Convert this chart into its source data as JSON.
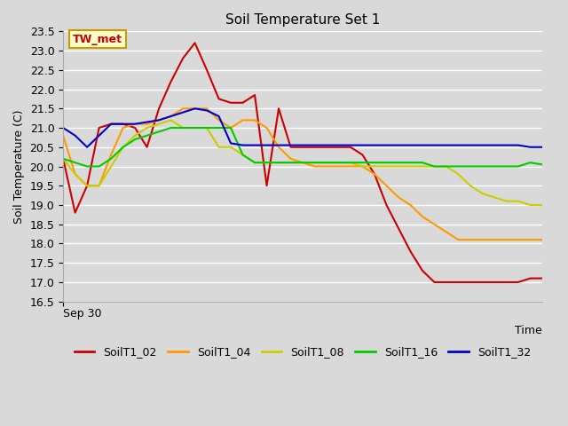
{
  "title": "Soil Temperature Set 1",
  "xlabel": "Time",
  "ylabel": "Soil Temperature (C)",
  "ylim": [
    16.5,
    23.5
  ],
  "background_color": "#d9d9d9",
  "plot_bg_color": "#d9d9d9",
  "annotation_label": "TW_met",
  "annotation_bg": "#ffffcc",
  "annotation_border": "#cc9900",
  "annotation_text_color": "#cc0000",
  "series": {
    "SoilT1_02": {
      "color": "#cc0000",
      "x": [
        0,
        1,
        2,
        3,
        4,
        5,
        6,
        7,
        8,
        9,
        10,
        11,
        12,
        13,
        14,
        15,
        16,
        17,
        18,
        19,
        20,
        21,
        22,
        23,
        24,
        25,
        26,
        27,
        28,
        29,
        30,
        31,
        32,
        33,
        34,
        35,
        36,
        37,
        38,
        39,
        40
      ],
      "y": [
        20.2,
        18.8,
        19.5,
        21.0,
        21.1,
        21.1,
        21.0,
        20.5,
        21.5,
        22.2,
        22.8,
        23.2,
        22.5,
        21.75,
        21.65,
        21.65,
        21.85,
        19.5,
        21.5,
        20.5,
        20.5,
        20.5,
        20.5,
        20.5,
        20.5,
        20.3,
        19.8,
        19.0,
        18.4,
        17.8,
        17.3,
        17.0,
        17.0,
        17.0,
        17.0,
        17.0,
        17.0,
        17.0,
        17.0,
        17.1,
        17.1
      ]
    },
    "SoilT1_04": {
      "color": "#ff9900",
      "x": [
        0,
        1,
        2,
        3,
        4,
        5,
        6,
        7,
        8,
        9,
        10,
        11,
        12,
        13,
        14,
        15,
        16,
        17,
        18,
        19,
        20,
        21,
        22,
        23,
        24,
        25,
        26,
        27,
        28,
        29,
        30,
        31,
        32,
        33,
        34,
        35,
        36,
        37,
        38,
        39,
        40
      ],
      "y": [
        20.8,
        19.8,
        19.5,
        19.5,
        20.3,
        21.0,
        21.1,
        21.1,
        21.2,
        21.3,
        21.5,
        21.5,
        21.5,
        21.2,
        21.0,
        21.2,
        21.2,
        21.0,
        20.5,
        20.2,
        20.1,
        20.0,
        20.0,
        20.0,
        20.0,
        20.0,
        19.8,
        19.5,
        19.2,
        19.0,
        18.7,
        18.5,
        18.3,
        18.1,
        18.1,
        18.1,
        18.1,
        18.1,
        18.1,
        18.1,
        18.1
      ]
    },
    "SoilT1_08": {
      "color": "#cccc00",
      "x": [
        0,
        1,
        2,
        3,
        4,
        5,
        6,
        7,
        8,
        9,
        10,
        11,
        12,
        13,
        14,
        15,
        16,
        17,
        18,
        19,
        20,
        21,
        22,
        23,
        24,
        25,
        26,
        27,
        28,
        29,
        30,
        31,
        32,
        33,
        34,
        35,
        36,
        37,
        38,
        39,
        40
      ],
      "y": [
        20.2,
        19.8,
        19.5,
        19.5,
        20.0,
        20.5,
        20.8,
        21.0,
        21.1,
        21.2,
        21.0,
        21.0,
        21.0,
        20.5,
        20.5,
        20.3,
        20.1,
        20.1,
        20.1,
        20.1,
        20.1,
        20.1,
        20.1,
        20.1,
        20.1,
        20.0,
        20.0,
        20.0,
        20.0,
        20.0,
        20.0,
        20.0,
        20.0,
        19.8,
        19.5,
        19.3,
        19.2,
        19.1,
        19.1,
        19.0,
        19.0
      ]
    },
    "SoilT1_16": {
      "color": "#00cc00",
      "x": [
        0,
        1,
        2,
        3,
        4,
        5,
        6,
        7,
        8,
        9,
        10,
        11,
        12,
        13,
        14,
        15,
        16,
        17,
        18,
        19,
        20,
        21,
        22,
        23,
        24,
        25,
        26,
        27,
        28,
        29,
        30,
        31,
        32,
        33,
        34,
        35,
        36,
        37,
        38,
        39,
        40
      ],
      "y": [
        20.2,
        20.1,
        20.0,
        20.0,
        20.2,
        20.5,
        20.7,
        20.8,
        20.9,
        21.0,
        21.0,
        21.0,
        21.0,
        21.0,
        21.0,
        20.3,
        20.1,
        20.1,
        20.1,
        20.1,
        20.1,
        20.1,
        20.1,
        20.1,
        20.1,
        20.1,
        20.1,
        20.1,
        20.1,
        20.1,
        20.1,
        20.0,
        20.0,
        20.0,
        20.0,
        20.0,
        20.0,
        20.0,
        20.0,
        20.1,
        20.05
      ]
    },
    "SoilT1_32": {
      "color": "#0000cc",
      "x": [
        0,
        1,
        2,
        3,
        4,
        5,
        6,
        7,
        8,
        9,
        10,
        11,
        12,
        13,
        14,
        15,
        16,
        17,
        18,
        19,
        20,
        21,
        22,
        23,
        24,
        25,
        26,
        27,
        28,
        29,
        30,
        31,
        32,
        33,
        34,
        35,
        36,
        37,
        38,
        39,
        40
      ],
      "y": [
        21.0,
        20.8,
        20.5,
        20.8,
        21.1,
        21.1,
        21.1,
        21.15,
        21.2,
        21.3,
        21.4,
        21.5,
        21.45,
        21.3,
        20.6,
        20.55,
        20.55,
        20.55,
        20.55,
        20.55,
        20.55,
        20.55,
        20.55,
        20.55,
        20.55,
        20.55,
        20.55,
        20.55,
        20.55,
        20.55,
        20.55,
        20.55,
        20.55,
        20.55,
        20.55,
        20.55,
        20.55,
        20.55,
        20.55,
        20.5,
        20.5
      ]
    }
  },
  "xtick_labels": [
    "Sep 30"
  ],
  "legend_order": [
    "SoilT1_02",
    "SoilT1_04",
    "SoilT1_08",
    "SoilT1_16",
    "SoilT1_32"
  ],
  "title_fontsize": 11,
  "axis_label_fontsize": 9,
  "tick_fontsize": 9,
  "legend_fontsize": 9,
  "linewidth": 1.5,
  "yticks": [
    16.5,
    17.0,
    17.5,
    18.0,
    18.5,
    19.0,
    19.5,
    20.0,
    20.5,
    21.0,
    21.5,
    22.0,
    22.5,
    23.0,
    23.5
  ]
}
